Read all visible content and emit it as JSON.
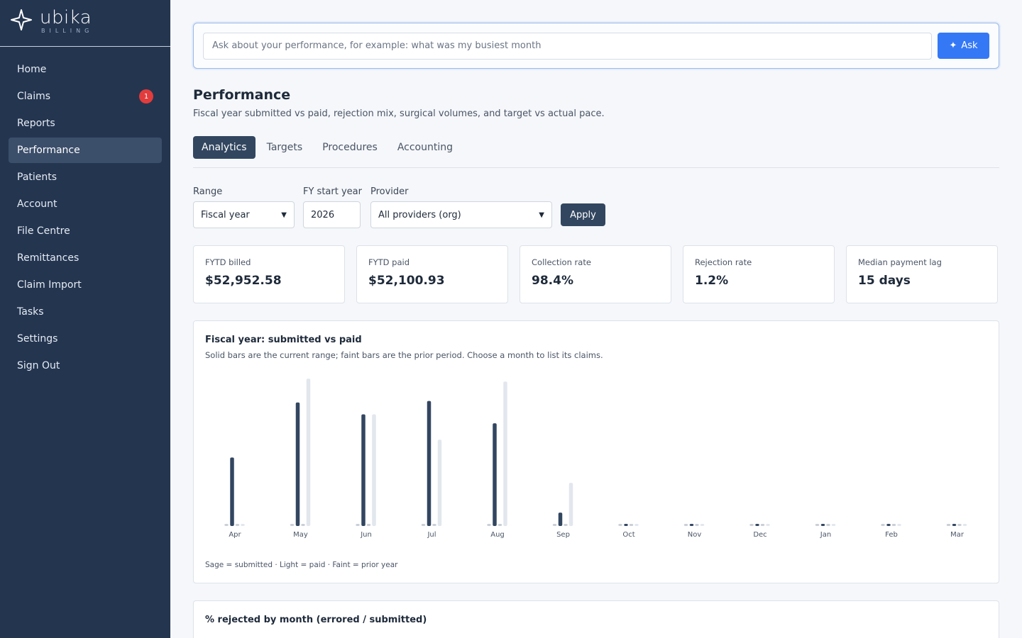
{
  "brand": {
    "name": "ubika",
    "sub": "BILLING"
  },
  "sidebar": {
    "items": [
      {
        "label": "Home"
      },
      {
        "label": "Claims",
        "badge": "1"
      },
      {
        "label": "Reports"
      },
      {
        "label": "Performance",
        "active": true
      },
      {
        "label": "Patients"
      },
      {
        "label": "Account"
      },
      {
        "label": "File Centre"
      },
      {
        "label": "Remittances"
      },
      {
        "label": "Claim Import"
      },
      {
        "label": "Tasks"
      },
      {
        "label": "Settings"
      },
      {
        "label": "Sign Out"
      }
    ]
  },
  "ask": {
    "placeholder": "Ask about your performance, for example: what was my busiest month",
    "button_label": "Ask",
    "button_icon": "sparkle-icon"
  },
  "page": {
    "title": "Performance",
    "subtitle": "Fiscal year submitted vs paid, rejection mix, surgical volumes, and target vs actual pace."
  },
  "tabs": [
    {
      "label": "Analytics",
      "active": true
    },
    {
      "label": "Targets"
    },
    {
      "label": "Procedures"
    },
    {
      "label": "Accounting"
    }
  ],
  "filters": {
    "range": {
      "label": "Range",
      "value": "Fiscal year"
    },
    "fy_start": {
      "label": "FY start year",
      "value": "2026"
    },
    "provider": {
      "label": "Provider",
      "value": "All providers (org)"
    },
    "apply_label": "Apply"
  },
  "kpis": [
    {
      "label": "FYTD billed",
      "value": "$52,952.58"
    },
    {
      "label": "FYTD paid",
      "value": "$52,100.93"
    },
    {
      "label": "Collection rate",
      "value": "98.4%"
    },
    {
      "label": "Rejection rate",
      "value": "1.2%"
    },
    {
      "label": "Median payment lag",
      "value": "15 days"
    }
  ],
  "chart_card": {
    "title": "Fiscal year: submitted vs paid",
    "subtitle": "Solid bars are the current range; faint bars are the prior period. Choose a month to list its claims.",
    "legend": "Sage = submitted · Light = paid · Faint = prior year"
  },
  "chart_data": {
    "type": "bar",
    "title": "Fiscal year: submitted vs paid",
    "categories": [
      "Apr",
      "May",
      "Jun",
      "Jul",
      "Aug",
      "Sep",
      "Oct",
      "Nov",
      "Dec",
      "Jan",
      "Feb",
      "Mar"
    ],
    "ylim": [
      0,
      100
    ],
    "series": [
      {
        "name": "submitted",
        "values": [
          0,
          0,
          0,
          0,
          0,
          0,
          0,
          0,
          0,
          0,
          0,
          0
        ],
        "color": "#c9cfd6"
      },
      {
        "name": "paid",
        "values": [
          46,
          83,
          75,
          84,
          69,
          9,
          0,
          0,
          0,
          0,
          0,
          0
        ],
        "color": "#324660"
      },
      {
        "name": "prior year",
        "values": [
          0,
          0,
          0,
          0,
          0,
          0,
          0,
          0,
          0,
          0,
          0,
          0
        ],
        "color": "#c9cfd6"
      },
      {
        "name": "prior year",
        "values": [
          0,
          99,
          75,
          58,
          97,
          29,
          0,
          0,
          0,
          0,
          0,
          0
        ],
        "color": "#e2e7ee"
      }
    ],
    "grid": false
  },
  "rejected_card": {
    "title": "% rejected by month (errored / submitted)"
  }
}
